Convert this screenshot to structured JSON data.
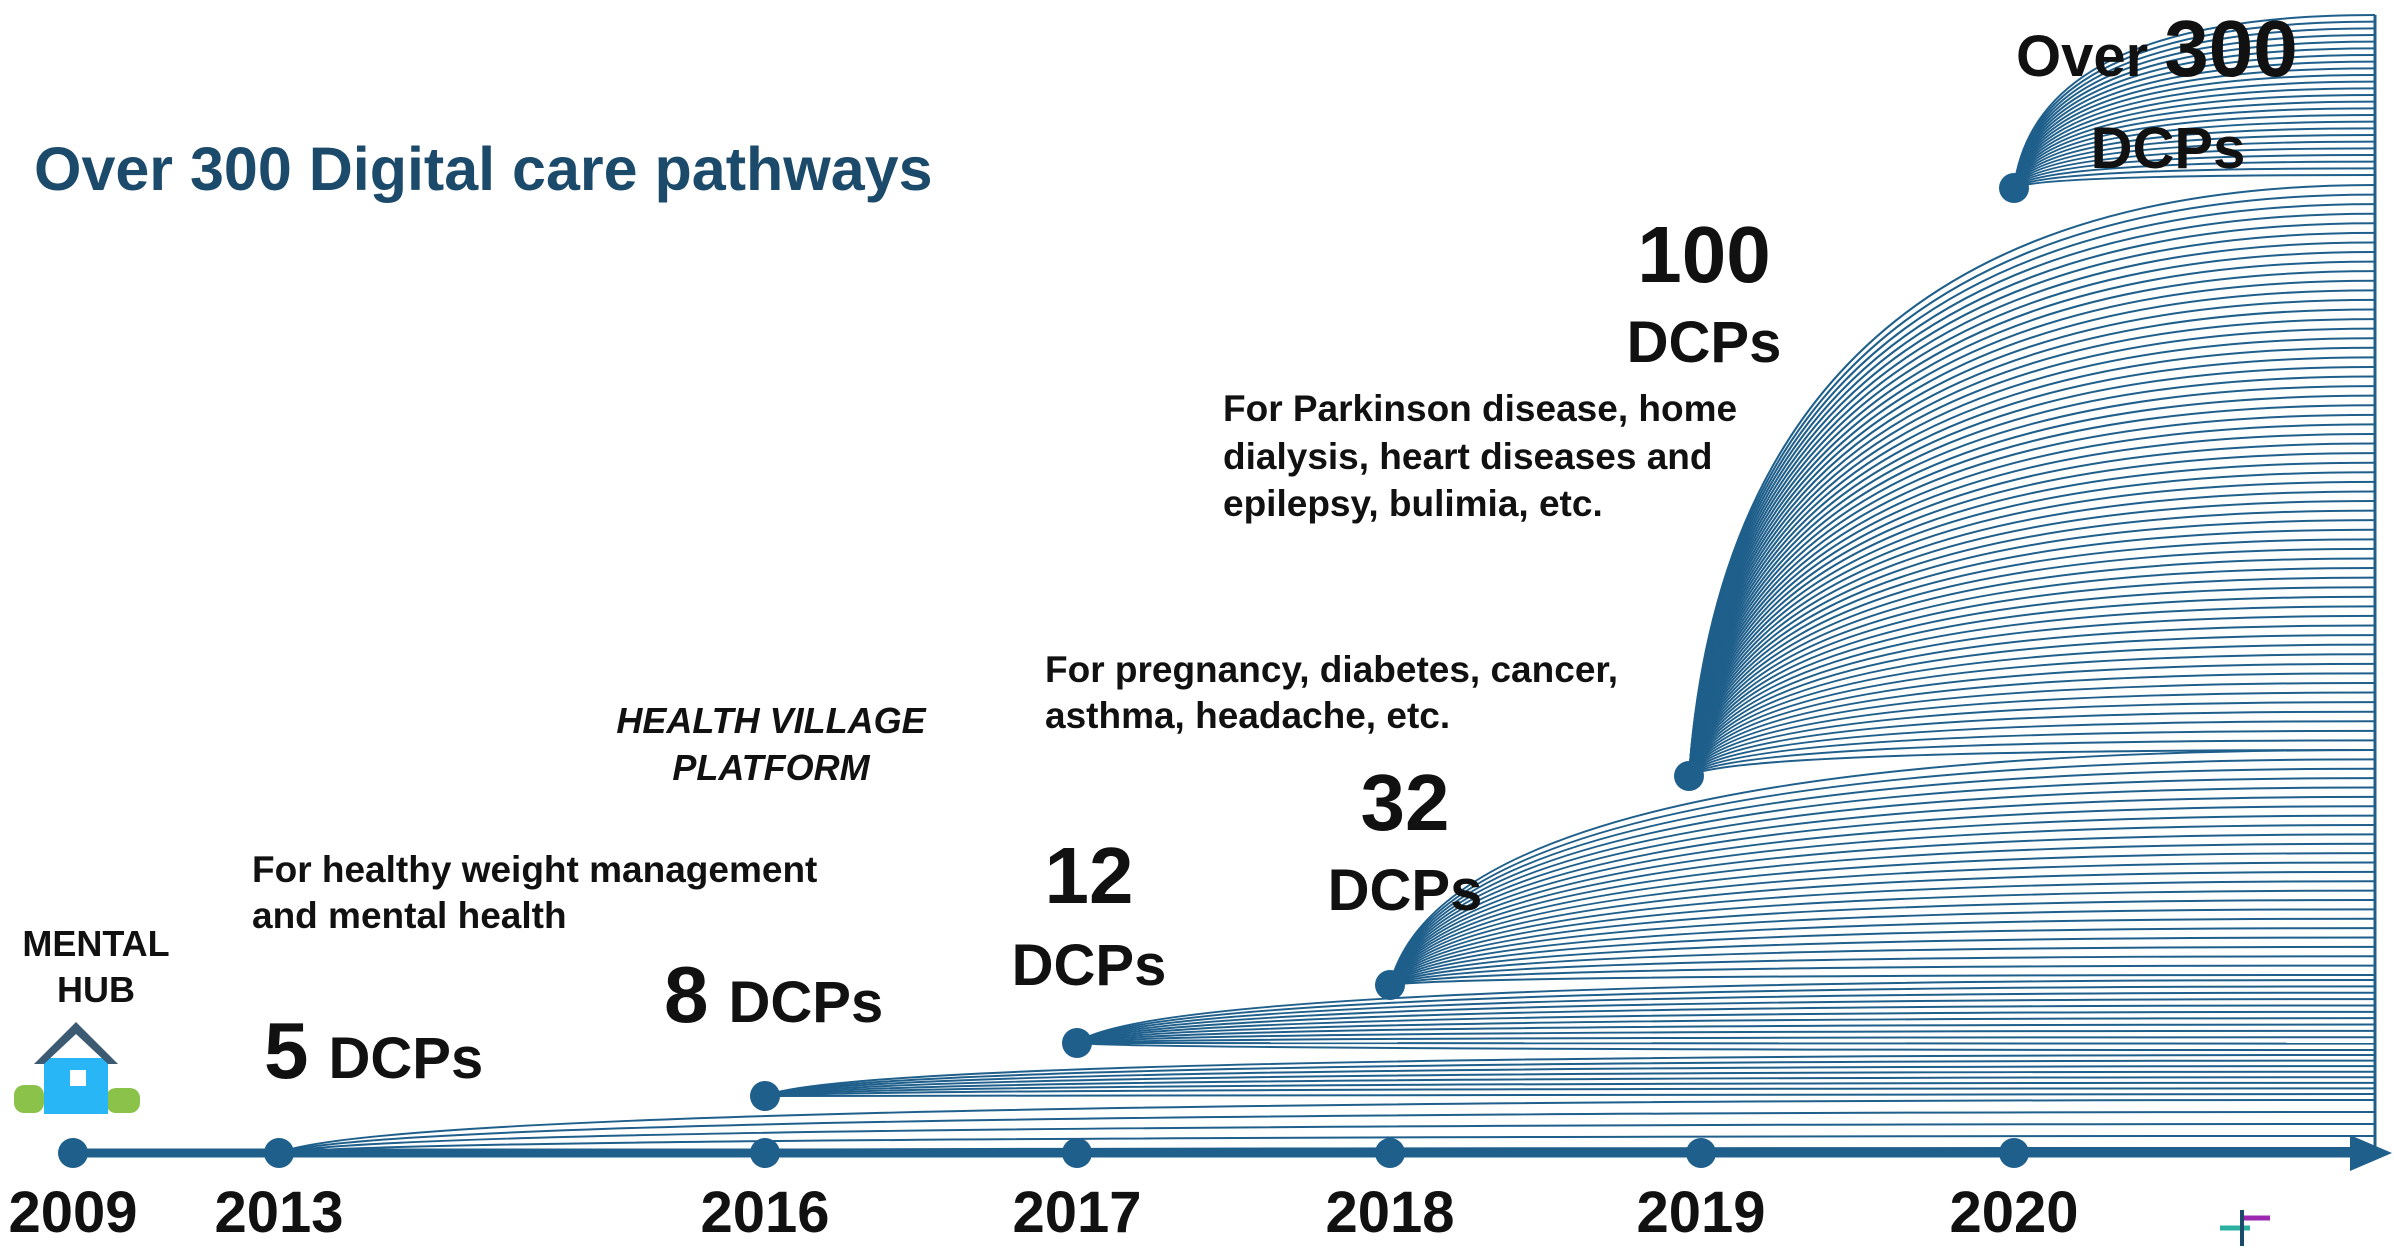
{
  "title": "Over 300 Digital care pathways",
  "start": [
    "MENTAL",
    "HUB"
  ],
  "platform": [
    "HEALTH VILLAGE",
    "PLATFORM"
  ],
  "timeline": {
    "years": [
      "2009",
      "2013",
      "2016",
      "2017",
      "2018",
      "2019",
      "2020"
    ]
  },
  "milestones": [
    {
      "count": "5",
      "unit": "DCPs",
      "description": [
        "For healthy weight management",
        "and mental health"
      ]
    },
    {
      "count": "8",
      "unit": "DCPs"
    },
    {
      "count": "12",
      "unit": "DCPs"
    },
    {
      "count": "32",
      "unit": "DCPs",
      "description": [
        "For pregnancy, diabetes, cancer,",
        "asthma, headache, etc."
      ]
    },
    {
      "count": "100",
      "unit": "DCPs",
      "description": [
        "For Parkinson disease, home",
        "dialysis, heart diseases and",
        "epilepsy, bulimia, etc."
      ]
    },
    {
      "prefix": "Over",
      "count": "300",
      "unit": "DCPs"
    }
  ]
}
